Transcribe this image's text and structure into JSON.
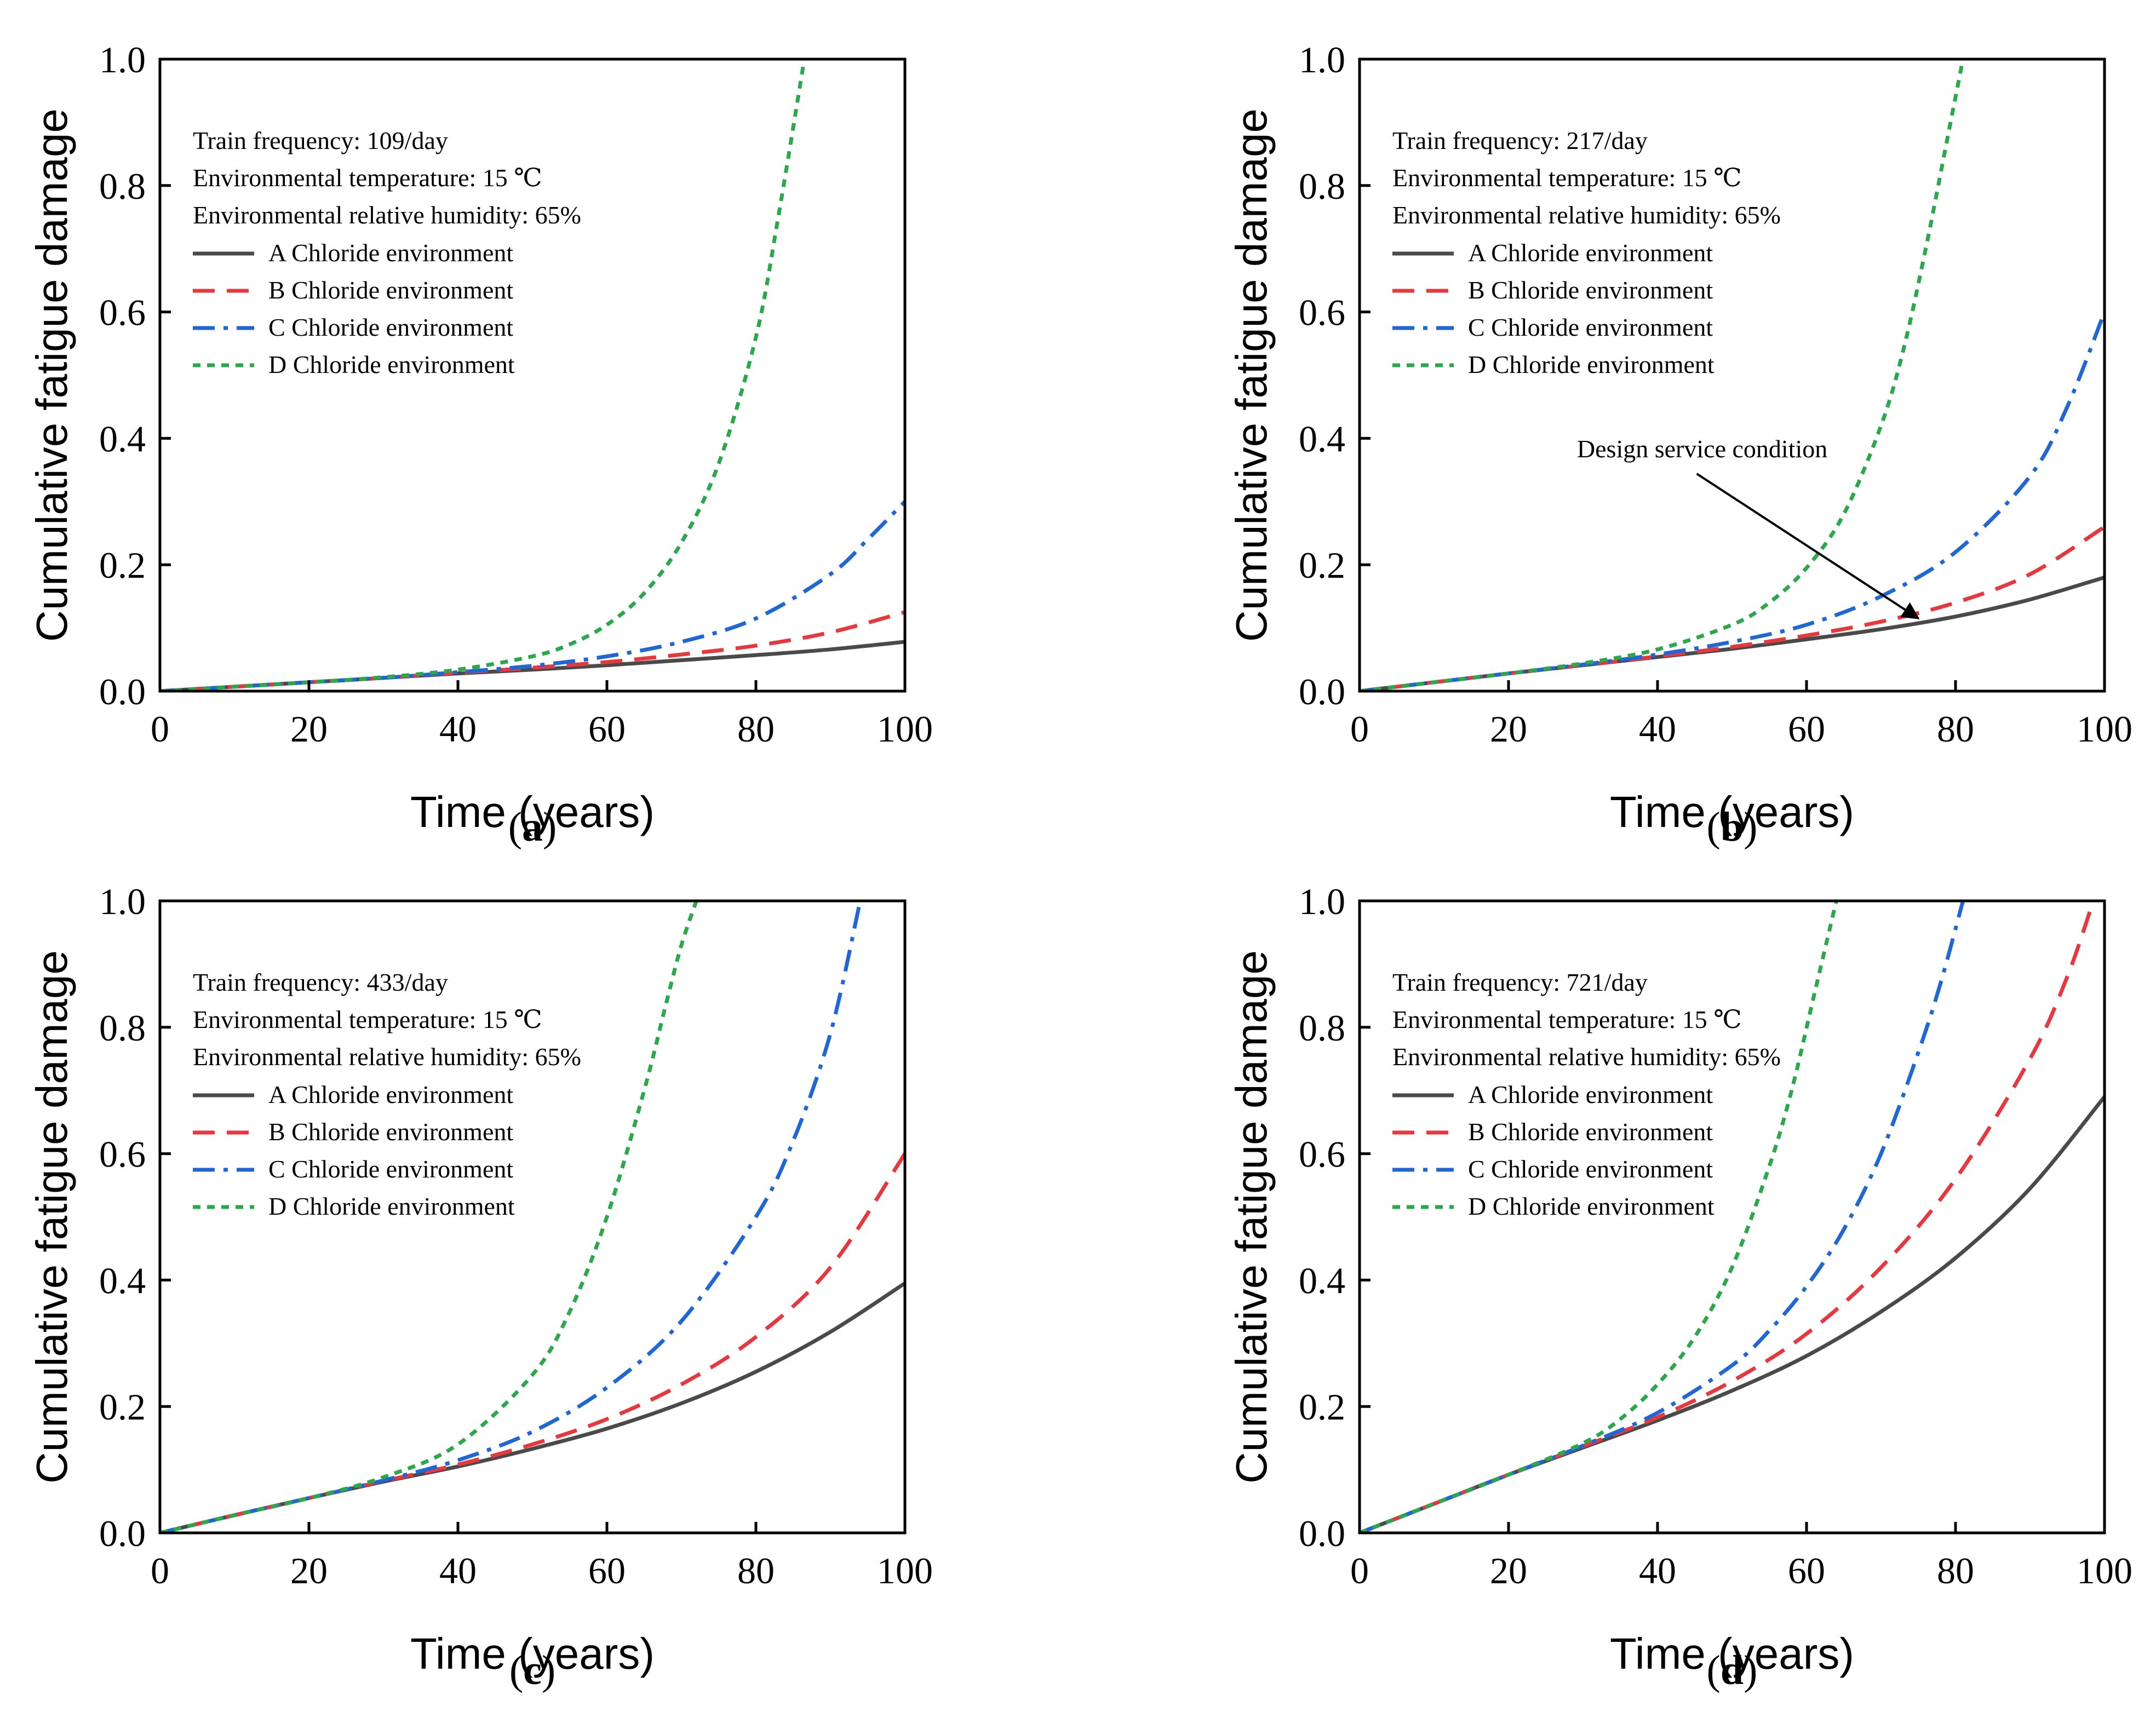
{
  "figure": {
    "x_axis_title": "Time (years)",
    "y_axis_title": "Cumulative fatigue damage",
    "info_lines": {
      "temperature": "Environmental temperature: 15 ℃",
      "humidity": "Environmental relative humidity: 65%"
    }
  },
  "series_styles": [
    {
      "key": "A",
      "label": "A Chloride environment",
      "color": "#4a4a4a",
      "dash": "solid"
    },
    {
      "key": "B",
      "label": "B Chloride environment",
      "color": "#e8383d",
      "dash": "dash"
    },
    {
      "key": "C",
      "label": "C Chloride environment",
      "color": "#1f66d6",
      "dash": "dashdot"
    },
    {
      "key": "D",
      "label": "D Chloride environment",
      "color": "#2aa84a",
      "dash": "dot"
    }
  ],
  "chart_data": [
    {
      "type": "line",
      "panel": "a",
      "title": "Train frequency: 109/day",
      "xlabel": "Time (years)",
      "ylabel": "Cumulative fatigue damage",
      "xlim": [
        0,
        100
      ],
      "ylim": [
        0,
        1.0
      ],
      "xticks": [
        0,
        20,
        40,
        60,
        80,
        100
      ],
      "yticks": [
        0.0,
        0.2,
        0.4,
        0.6,
        0.8,
        1.0
      ],
      "legend": "upper-left",
      "series": [
        {
          "name": "A Chloride environment",
          "x": [
            0,
            10,
            20,
            30,
            40,
            50,
            60,
            70,
            80,
            90,
            100
          ],
          "y": [
            0,
            0.007,
            0.014,
            0.021,
            0.028,
            0.034,
            0.041,
            0.049,
            0.057,
            0.066,
            0.078
          ]
        },
        {
          "name": "B Chloride environment",
          "x": [
            0,
            10,
            20,
            30,
            40,
            50,
            60,
            70,
            80,
            90,
            100
          ],
          "y": [
            0,
            0.007,
            0.014,
            0.021,
            0.029,
            0.037,
            0.046,
            0.058,
            0.072,
            0.093,
            0.125
          ]
        },
        {
          "name": "C Chloride environment",
          "x": [
            0,
            10,
            20,
            30,
            40,
            50,
            60,
            70,
            80,
            90,
            95,
            100
          ],
          "y": [
            0,
            0.007,
            0.014,
            0.021,
            0.03,
            0.04,
            0.055,
            0.078,
            0.115,
            0.185,
            0.24,
            0.3
          ]
        },
        {
          "name": "D Chloride environment",
          "x": [
            0,
            10,
            20,
            30,
            40,
            50,
            55,
            60,
            65,
            70,
            75,
            80,
            83,
            86.5
          ],
          "y": [
            0,
            0.007,
            0.014,
            0.022,
            0.034,
            0.055,
            0.074,
            0.105,
            0.155,
            0.235,
            0.36,
            0.56,
            0.75,
            1.0
          ]
        }
      ]
    },
    {
      "type": "line",
      "panel": "b",
      "title": "Train frequency: 217/day",
      "xlabel": "Time (years)",
      "ylabel": "Cumulative fatigue damage",
      "xlim": [
        0,
        100
      ],
      "ylim": [
        0,
        1.0
      ],
      "xticks": [
        0,
        20,
        40,
        60,
        80,
        100
      ],
      "yticks": [
        0.0,
        0.2,
        0.4,
        0.6,
        0.8,
        1.0
      ],
      "legend": "upper-left",
      "annotation": {
        "text": "Design service condition",
        "x": 75,
        "y": 0.11
      },
      "series": [
        {
          "name": "A Chloride environment",
          "x": [
            0,
            10,
            20,
            30,
            40,
            50,
            60,
            70,
            80,
            90,
            100
          ],
          "y": [
            0,
            0.014,
            0.028,
            0.041,
            0.054,
            0.067,
            0.082,
            0.098,
            0.118,
            0.145,
            0.18
          ]
        },
        {
          "name": "B Chloride environment",
          "x": [
            0,
            10,
            20,
            30,
            40,
            50,
            60,
            70,
            80,
            90,
            100
          ],
          "y": [
            0,
            0.014,
            0.028,
            0.041,
            0.055,
            0.07,
            0.088,
            0.11,
            0.14,
            0.185,
            0.26
          ]
        },
        {
          "name": "C Chloride environment",
          "x": [
            0,
            10,
            20,
            30,
            40,
            50,
            60,
            70,
            80,
            90,
            95,
            100
          ],
          "y": [
            0,
            0.014,
            0.028,
            0.042,
            0.058,
            0.078,
            0.105,
            0.15,
            0.22,
            0.34,
            0.45,
            0.6
          ]
        },
        {
          "name": "D Chloride environment",
          "x": [
            0,
            10,
            20,
            30,
            40,
            50,
            55,
            60,
            65,
            70,
            73,
            76,
            79,
            81
          ],
          "y": [
            0,
            0.014,
            0.028,
            0.044,
            0.066,
            0.105,
            0.14,
            0.195,
            0.28,
            0.42,
            0.54,
            0.7,
            0.88,
            1.0
          ]
        }
      ]
    },
    {
      "type": "line",
      "panel": "c",
      "title": "Train frequency: 433/day",
      "xlabel": "Time (years)",
      "ylabel": "Cumulative fatigue damage",
      "xlim": [
        0,
        100
      ],
      "ylim": [
        0,
        1.0
      ],
      "xticks": [
        0,
        20,
        40,
        60,
        80,
        100
      ],
      "yticks": [
        0.0,
        0.2,
        0.4,
        0.6,
        0.8,
        1.0
      ],
      "legend": "upper-left",
      "series": [
        {
          "name": "A Chloride environment",
          "x": [
            0,
            10,
            20,
            30,
            40,
            50,
            60,
            70,
            80,
            90,
            100
          ],
          "y": [
            0,
            0.028,
            0.055,
            0.081,
            0.105,
            0.133,
            0.165,
            0.205,
            0.255,
            0.318,
            0.395
          ]
        },
        {
          "name": "B Chloride environment",
          "x": [
            0,
            10,
            20,
            30,
            40,
            50,
            60,
            70,
            80,
            90,
            100
          ],
          "y": [
            0,
            0.028,
            0.055,
            0.082,
            0.108,
            0.14,
            0.18,
            0.235,
            0.31,
            0.42,
            0.6
          ]
        },
        {
          "name": "C Chloride environment",
          "x": [
            0,
            10,
            20,
            30,
            40,
            50,
            60,
            70,
            80,
            85,
            90,
            94
          ],
          "y": [
            0,
            0.028,
            0.055,
            0.083,
            0.115,
            0.16,
            0.23,
            0.335,
            0.5,
            0.62,
            0.79,
            1.0
          ]
        },
        {
          "name": "D Chloride environment",
          "x": [
            0,
            10,
            20,
            30,
            40,
            50,
            55,
            60,
            65,
            68,
            70,
            72
          ],
          "y": [
            0,
            0.028,
            0.055,
            0.088,
            0.14,
            0.25,
            0.35,
            0.5,
            0.7,
            0.84,
            0.93,
            1.0
          ]
        }
      ]
    },
    {
      "type": "line",
      "panel": "d",
      "title": "Train frequency: 721/day",
      "xlabel": "Time (years)",
      "ylabel": "Cumulative fatigue damage",
      "xlim": [
        0,
        100
      ],
      "ylim": [
        0,
        1.0
      ],
      "xticks": [
        0,
        20,
        40,
        60,
        80,
        100
      ],
      "yticks": [
        0.0,
        0.2,
        0.4,
        0.6,
        0.8,
        1.0
      ],
      "legend": "upper-left",
      "series": [
        {
          "name": "A Chloride environment",
          "x": [
            0,
            10,
            20,
            30,
            40,
            50,
            60,
            70,
            80,
            90,
            100
          ],
          "y": [
            0,
            0.046,
            0.092,
            0.135,
            0.178,
            0.225,
            0.28,
            0.35,
            0.435,
            0.545,
            0.69
          ]
        },
        {
          "name": "B Chloride environment",
          "x": [
            0,
            10,
            20,
            30,
            40,
            50,
            60,
            70,
            80,
            90,
            95,
            98.5
          ],
          "y": [
            0,
            0.046,
            0.092,
            0.137,
            0.183,
            0.24,
            0.315,
            0.42,
            0.56,
            0.75,
            0.88,
            1.0
          ]
        },
        {
          "name": "C Chloride environment",
          "x": [
            0,
            10,
            20,
            30,
            40,
            50,
            55,
            60,
            65,
            70,
            75,
            78,
            81
          ],
          "y": [
            0,
            0.046,
            0.092,
            0.138,
            0.19,
            0.265,
            0.32,
            0.39,
            0.48,
            0.6,
            0.76,
            0.87,
            1.0
          ]
        },
        {
          "name": "D Chloride environment",
          "x": [
            0,
            10,
            20,
            30,
            35,
            40,
            45,
            50,
            55,
            58,
            61,
            64
          ],
          "y": [
            0,
            0.046,
            0.092,
            0.142,
            0.18,
            0.235,
            0.31,
            0.42,
            0.58,
            0.7,
            0.85,
            1.0
          ]
        }
      ]
    }
  ]
}
